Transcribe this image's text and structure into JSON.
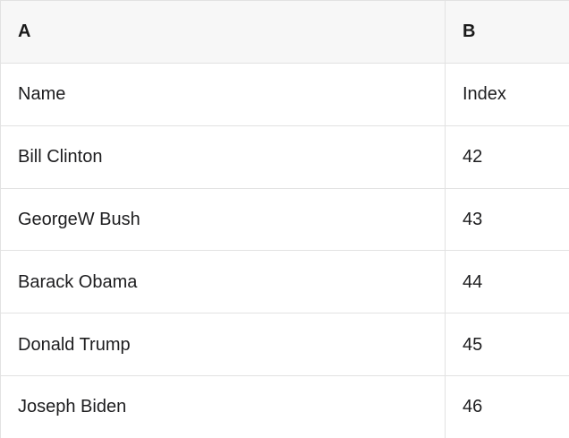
{
  "table": {
    "columns": [
      {
        "label": "A"
      },
      {
        "label": "B"
      }
    ],
    "rows": [
      {
        "cells": [
          "Name",
          "Index"
        ]
      },
      {
        "cells": [
          "Bill Clinton",
          "42"
        ]
      },
      {
        "cells": [
          "GeorgeW Bush",
          "43"
        ]
      },
      {
        "cells": [
          "Barack Obama",
          "44"
        ]
      },
      {
        "cells": [
          "Donald Trump",
          "45"
        ]
      },
      {
        "cells": [
          "Joseph Biden",
          "46"
        ]
      }
    ]
  },
  "colors": {
    "header_background": "#f7f7f7",
    "row_background": "#ffffff",
    "border": "#e2e2e2",
    "text": "#1d1d1f"
  }
}
